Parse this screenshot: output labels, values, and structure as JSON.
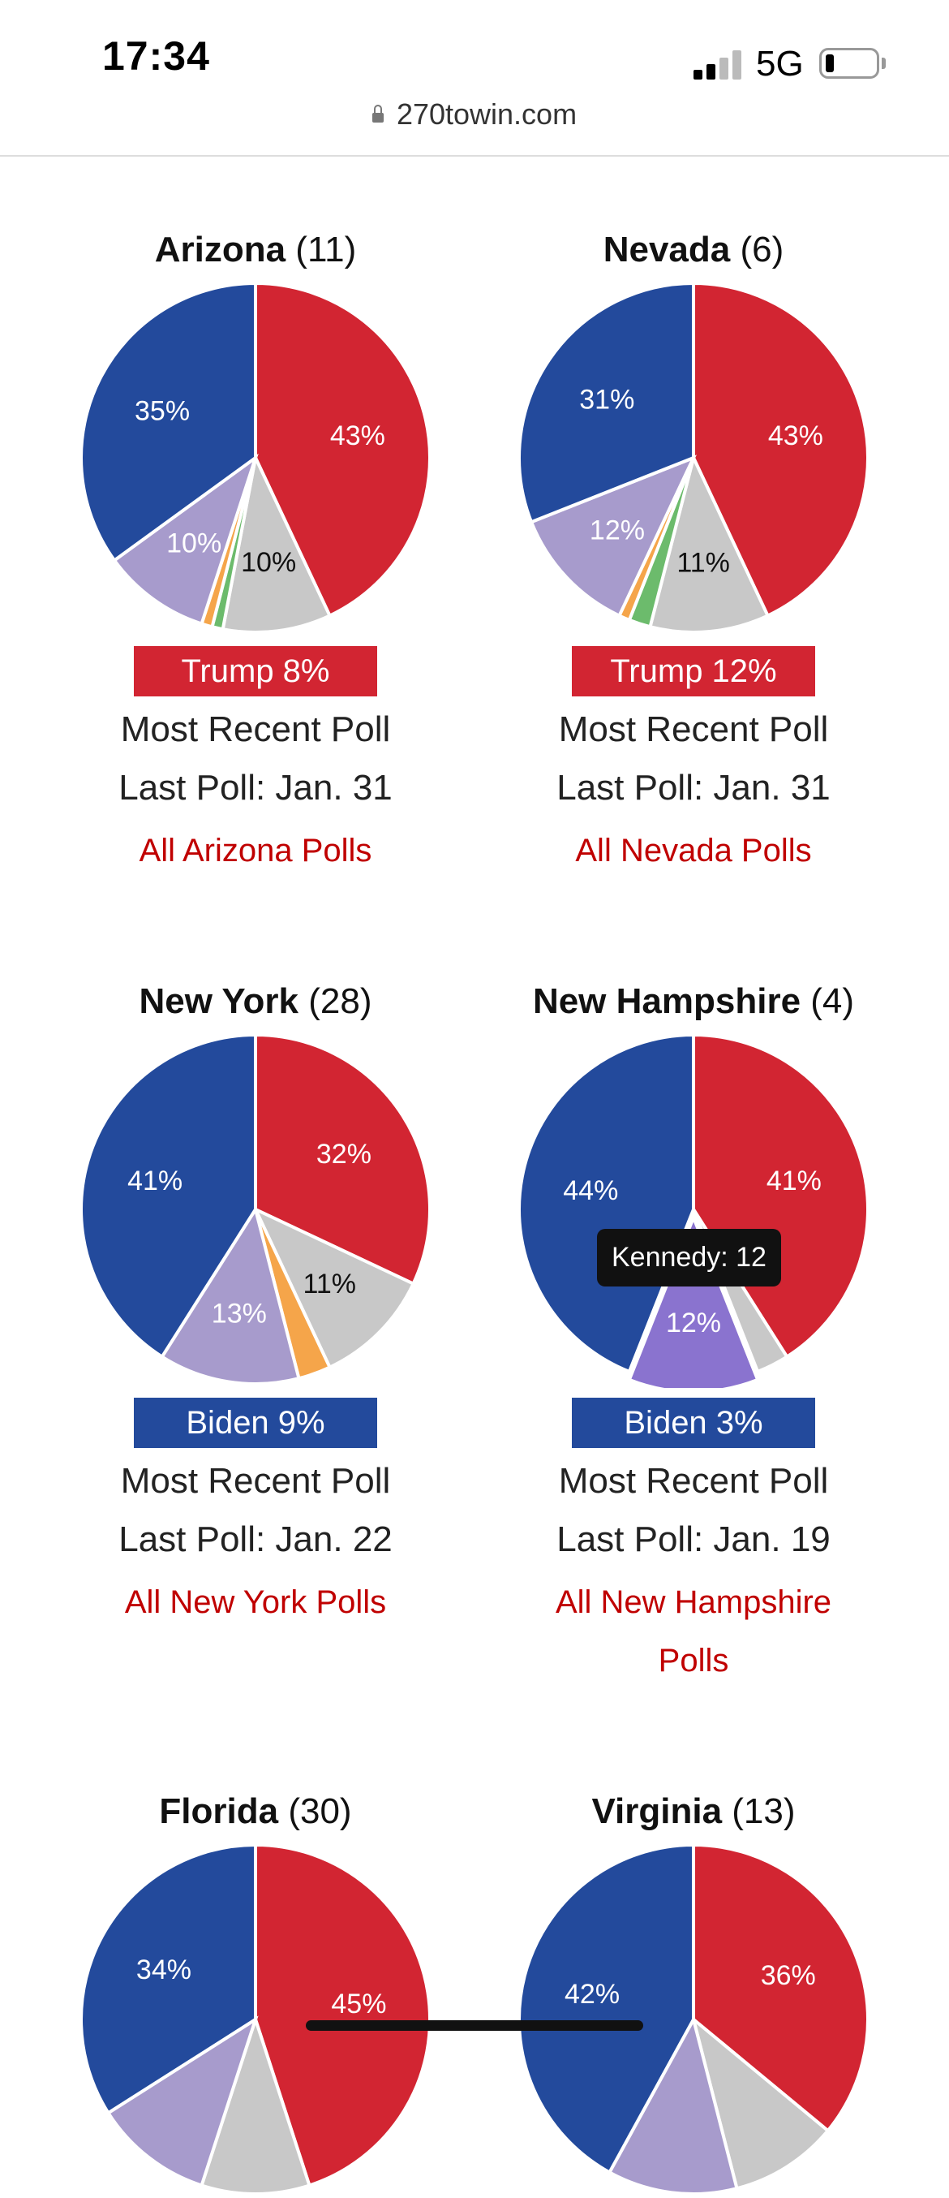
{
  "status_bar": {
    "time": "17:34",
    "network": "5G"
  },
  "url": "270towin.com",
  "colors": {
    "rep": "#d22532",
    "dem": "#234a9c",
    "indep": "#a79bcc",
    "kennedy_active": "#8a73cf",
    "other": "#c8c8c8",
    "green": "#6cbb6c",
    "orange": "#f5a54a",
    "link": "#c00000"
  },
  "states": [
    {
      "name": "Arizona",
      "ev": "(11)",
      "margin": "Trump 8%",
      "margin_party": "rep",
      "recent": "Most Recent Poll",
      "last_poll": "Last Poll: Jan. 31",
      "link": "All Arizona Polls",
      "chart_data": {
        "type": "pie",
        "slices": [
          {
            "party": "rep",
            "value": 43,
            "label": "43%"
          },
          {
            "party": "other",
            "value": 10,
            "label": "10%"
          },
          {
            "party": "green",
            "value": 1,
            "label": ""
          },
          {
            "party": "orange",
            "value": 1,
            "label": ""
          },
          {
            "party": "indep",
            "value": 10,
            "label": "10%"
          },
          {
            "party": "dem",
            "value": 35,
            "label": "35%"
          }
        ]
      }
    },
    {
      "name": "Nevada",
      "ev": "(6)",
      "margin": "Trump 12%",
      "margin_party": "rep",
      "recent": "Most Recent Poll",
      "last_poll": "Last Poll: Jan. 31",
      "link": "All Nevada Polls",
      "chart_data": {
        "type": "pie",
        "slices": [
          {
            "party": "rep",
            "value": 43,
            "label": "43%"
          },
          {
            "party": "other",
            "value": 11,
            "label": "11%"
          },
          {
            "party": "green",
            "value": 2,
            "label": ""
          },
          {
            "party": "orange",
            "value": 1,
            "label": ""
          },
          {
            "party": "indep",
            "value": 12,
            "label": "12%"
          },
          {
            "party": "dem",
            "value": 31,
            "label": "31%"
          }
        ]
      }
    },
    {
      "name": "New York",
      "ev": "(28)",
      "margin": "Biden 9%",
      "margin_party": "dem",
      "recent": "Most Recent Poll",
      "last_poll": "Last Poll: Jan. 22",
      "link": "All New York Polls",
      "chart_data": {
        "type": "pie",
        "slices": [
          {
            "party": "rep",
            "value": 32,
            "label": "32%"
          },
          {
            "party": "other",
            "value": 11,
            "label": "11%"
          },
          {
            "party": "orange",
            "value": 3,
            "label": ""
          },
          {
            "party": "indep",
            "value": 13,
            "label": "13%"
          },
          {
            "party": "dem",
            "value": 41,
            "label": "41%"
          }
        ]
      }
    },
    {
      "name": "New Hampshire",
      "ev": "(4)",
      "margin": "Biden 3%",
      "margin_party": "dem",
      "recent": "Most Recent Poll",
      "last_poll": "Last Poll: Jan. 19",
      "link": "All New Hampshire Polls",
      "tooltip": "Kennedy: 12",
      "chart_data": {
        "type": "pie",
        "slices": [
          {
            "party": "rep",
            "value": 41,
            "label": "41%"
          },
          {
            "party": "other",
            "value": 3,
            "label": ""
          },
          {
            "party": "kennedy_active",
            "value": 12,
            "label": "12%",
            "exploded": true
          },
          {
            "party": "dem",
            "value": 44,
            "label": "44%"
          }
        ]
      }
    },
    {
      "name": "Florida",
      "ev": "(30)",
      "margin": "",
      "margin_party": "rep",
      "recent": "",
      "last_poll": "",
      "link": "",
      "chart_data": {
        "type": "pie",
        "slices": [
          {
            "party": "rep",
            "value": 45,
            "label": "45%"
          },
          {
            "party": "other",
            "value": 10,
            "label": ""
          },
          {
            "party": "indep",
            "value": 11,
            "label": ""
          },
          {
            "party": "dem",
            "value": 34,
            "label": "34%"
          }
        ]
      }
    },
    {
      "name": "Virginia",
      "ev": "(13)",
      "margin": "",
      "margin_party": "dem",
      "recent": "",
      "last_poll": "",
      "link": "",
      "chart_data": {
        "type": "pie",
        "slices": [
          {
            "party": "rep",
            "value": 36,
            "label": "36%"
          },
          {
            "party": "other",
            "value": 10,
            "label": ""
          },
          {
            "party": "indep",
            "value": 12,
            "label": ""
          },
          {
            "party": "dem",
            "value": 42,
            "label": "42%"
          }
        ]
      }
    }
  ]
}
